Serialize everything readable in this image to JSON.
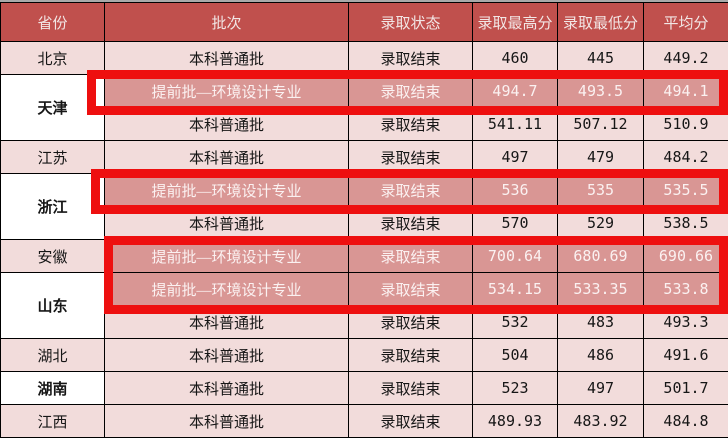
{
  "table": {
    "columns": [
      "省份",
      "批次",
      "录取状态",
      "录取最高分",
      "录取最低分",
      "平均分"
    ],
    "rows": [
      {
        "province": "北京",
        "province_rowspan": 1,
        "province_variant": "pink",
        "batch": "本科普通批",
        "status": "录取结束",
        "max": "460",
        "min": "445",
        "avg": "449.2",
        "highlight": false
      },
      {
        "province": "天津",
        "province_rowspan": 2,
        "province_variant": "white",
        "batch": "提前批—环境设计专业",
        "status": "录取结束",
        "max": "494.7",
        "min": "493.5",
        "avg": "494.1",
        "highlight": true
      },
      {
        "batch": "本科普通批",
        "status": "录取结束",
        "max": "541.11",
        "min": "507.12",
        "avg": "510.9",
        "highlight": false
      },
      {
        "province": "江苏",
        "province_rowspan": 1,
        "province_variant": "pink",
        "batch": "本科普通批",
        "status": "录取结束",
        "max": "497",
        "min": "479",
        "avg": "484.2",
        "highlight": false
      },
      {
        "province": "浙江",
        "province_rowspan": 2,
        "province_variant": "white",
        "batch": "提前批—环境设计专业",
        "status": "录取结束",
        "max": "536",
        "min": "535",
        "avg": "535.5",
        "highlight": true
      },
      {
        "batch": "本科普通批",
        "status": "录取结束",
        "max": "570",
        "min": "529",
        "avg": "538.5",
        "highlight": false
      },
      {
        "province": "安徽",
        "province_rowspan": 1,
        "province_variant": "pink",
        "batch": "提前批—环境设计专业",
        "status": "录取结束",
        "max": "700.64",
        "min": "680.69",
        "avg": "690.66",
        "highlight": true
      },
      {
        "province": "山东",
        "province_rowspan": 2,
        "province_variant": "white",
        "batch": "提前批—环境设计专业",
        "status": "录取结束",
        "max": "534.15",
        "min": "533.35",
        "avg": "533.8",
        "highlight": true
      },
      {
        "batch": "本科普通批",
        "status": "录取结束",
        "max": "532",
        "min": "483",
        "avg": "493.3",
        "highlight": false
      },
      {
        "province": "湖北",
        "province_rowspan": 1,
        "province_variant": "pink",
        "batch": "本科普通批",
        "status": "录取结束",
        "max": "504",
        "min": "486",
        "avg": "491.6",
        "highlight": false
      },
      {
        "province": "湖南",
        "province_rowspan": 1,
        "province_variant": "white",
        "batch": "本科普通批",
        "status": "录取结束",
        "max": "523",
        "min": "497",
        "avg": "501.7",
        "highlight": false
      },
      {
        "province": "江西",
        "province_rowspan": 1,
        "province_variant": "pink",
        "batch": "本科普通批",
        "status": "录取结束",
        "max": "489.93",
        "min": "483.92",
        "avg": "484.8",
        "highlight": false
      }
    ]
  },
  "colors": {
    "header_bg": "#c0504d",
    "row_pink": "#f2dcdb",
    "highlight_fill": "#d99694",
    "highlight_border_red": "#ee0f0f"
  },
  "annotations": {
    "highlighted_row_indexes": [
      1,
      4,
      6,
      7
    ],
    "highlight_box_count": 3
  }
}
